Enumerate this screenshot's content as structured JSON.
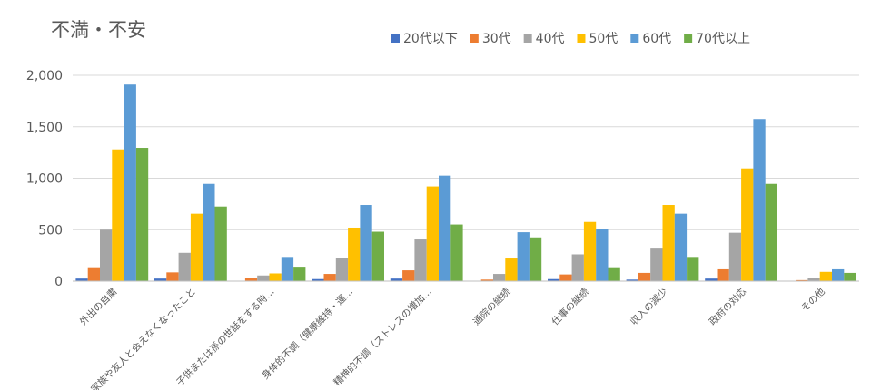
{
  "chart_data": {
    "type": "bar",
    "title": "不満・不安",
    "xlabel": "",
    "ylabel": "",
    "ylim": [
      0,
      2000
    ],
    "yticks": [
      "0",
      "500",
      "1,000",
      "1,500",
      "2,000"
    ],
    "grid": true,
    "legend_position": "top-right",
    "categories": [
      "外出の自粛",
      "家族や友人と会えなくなったこと",
      "子供または孫の世話をする時…",
      "身体的不調（健康維持・運…",
      "精神的不調（ストレスの増加…",
      "通院の継続",
      "仕事の継続",
      "収入の減少",
      "政府の対応",
      "その他"
    ],
    "series": [
      {
        "name": "20代以下",
        "color": "#4472c4",
        "values": [
          25,
          25,
          0,
          20,
          25,
          0,
          20,
          15,
          25,
          0
        ]
      },
      {
        "name": "30代",
        "color": "#ed7d31",
        "values": [
          135,
          85,
          30,
          70,
          105,
          15,
          65,
          80,
          115,
          10
        ]
      },
      {
        "name": "40代",
        "color": "#a5a5a5",
        "values": [
          500,
          275,
          55,
          225,
          405,
          70,
          260,
          325,
          470,
          35
        ]
      },
      {
        "name": "50代",
        "color": "#ffc000",
        "values": [
          1280,
          655,
          75,
          520,
          920,
          220,
          575,
          740,
          1095,
          90
        ]
      },
      {
        "name": "60代",
        "color": "#5b9bd5",
        "values": [
          1910,
          945,
          235,
          740,
          1025,
          475,
          510,
          655,
          1575,
          115
        ]
      },
      {
        "name": "70代以上",
        "color": "#70ad47",
        "values": [
          1295,
          725,
          140,
          480,
          550,
          425,
          135,
          235,
          945,
          80
        ]
      }
    ]
  }
}
